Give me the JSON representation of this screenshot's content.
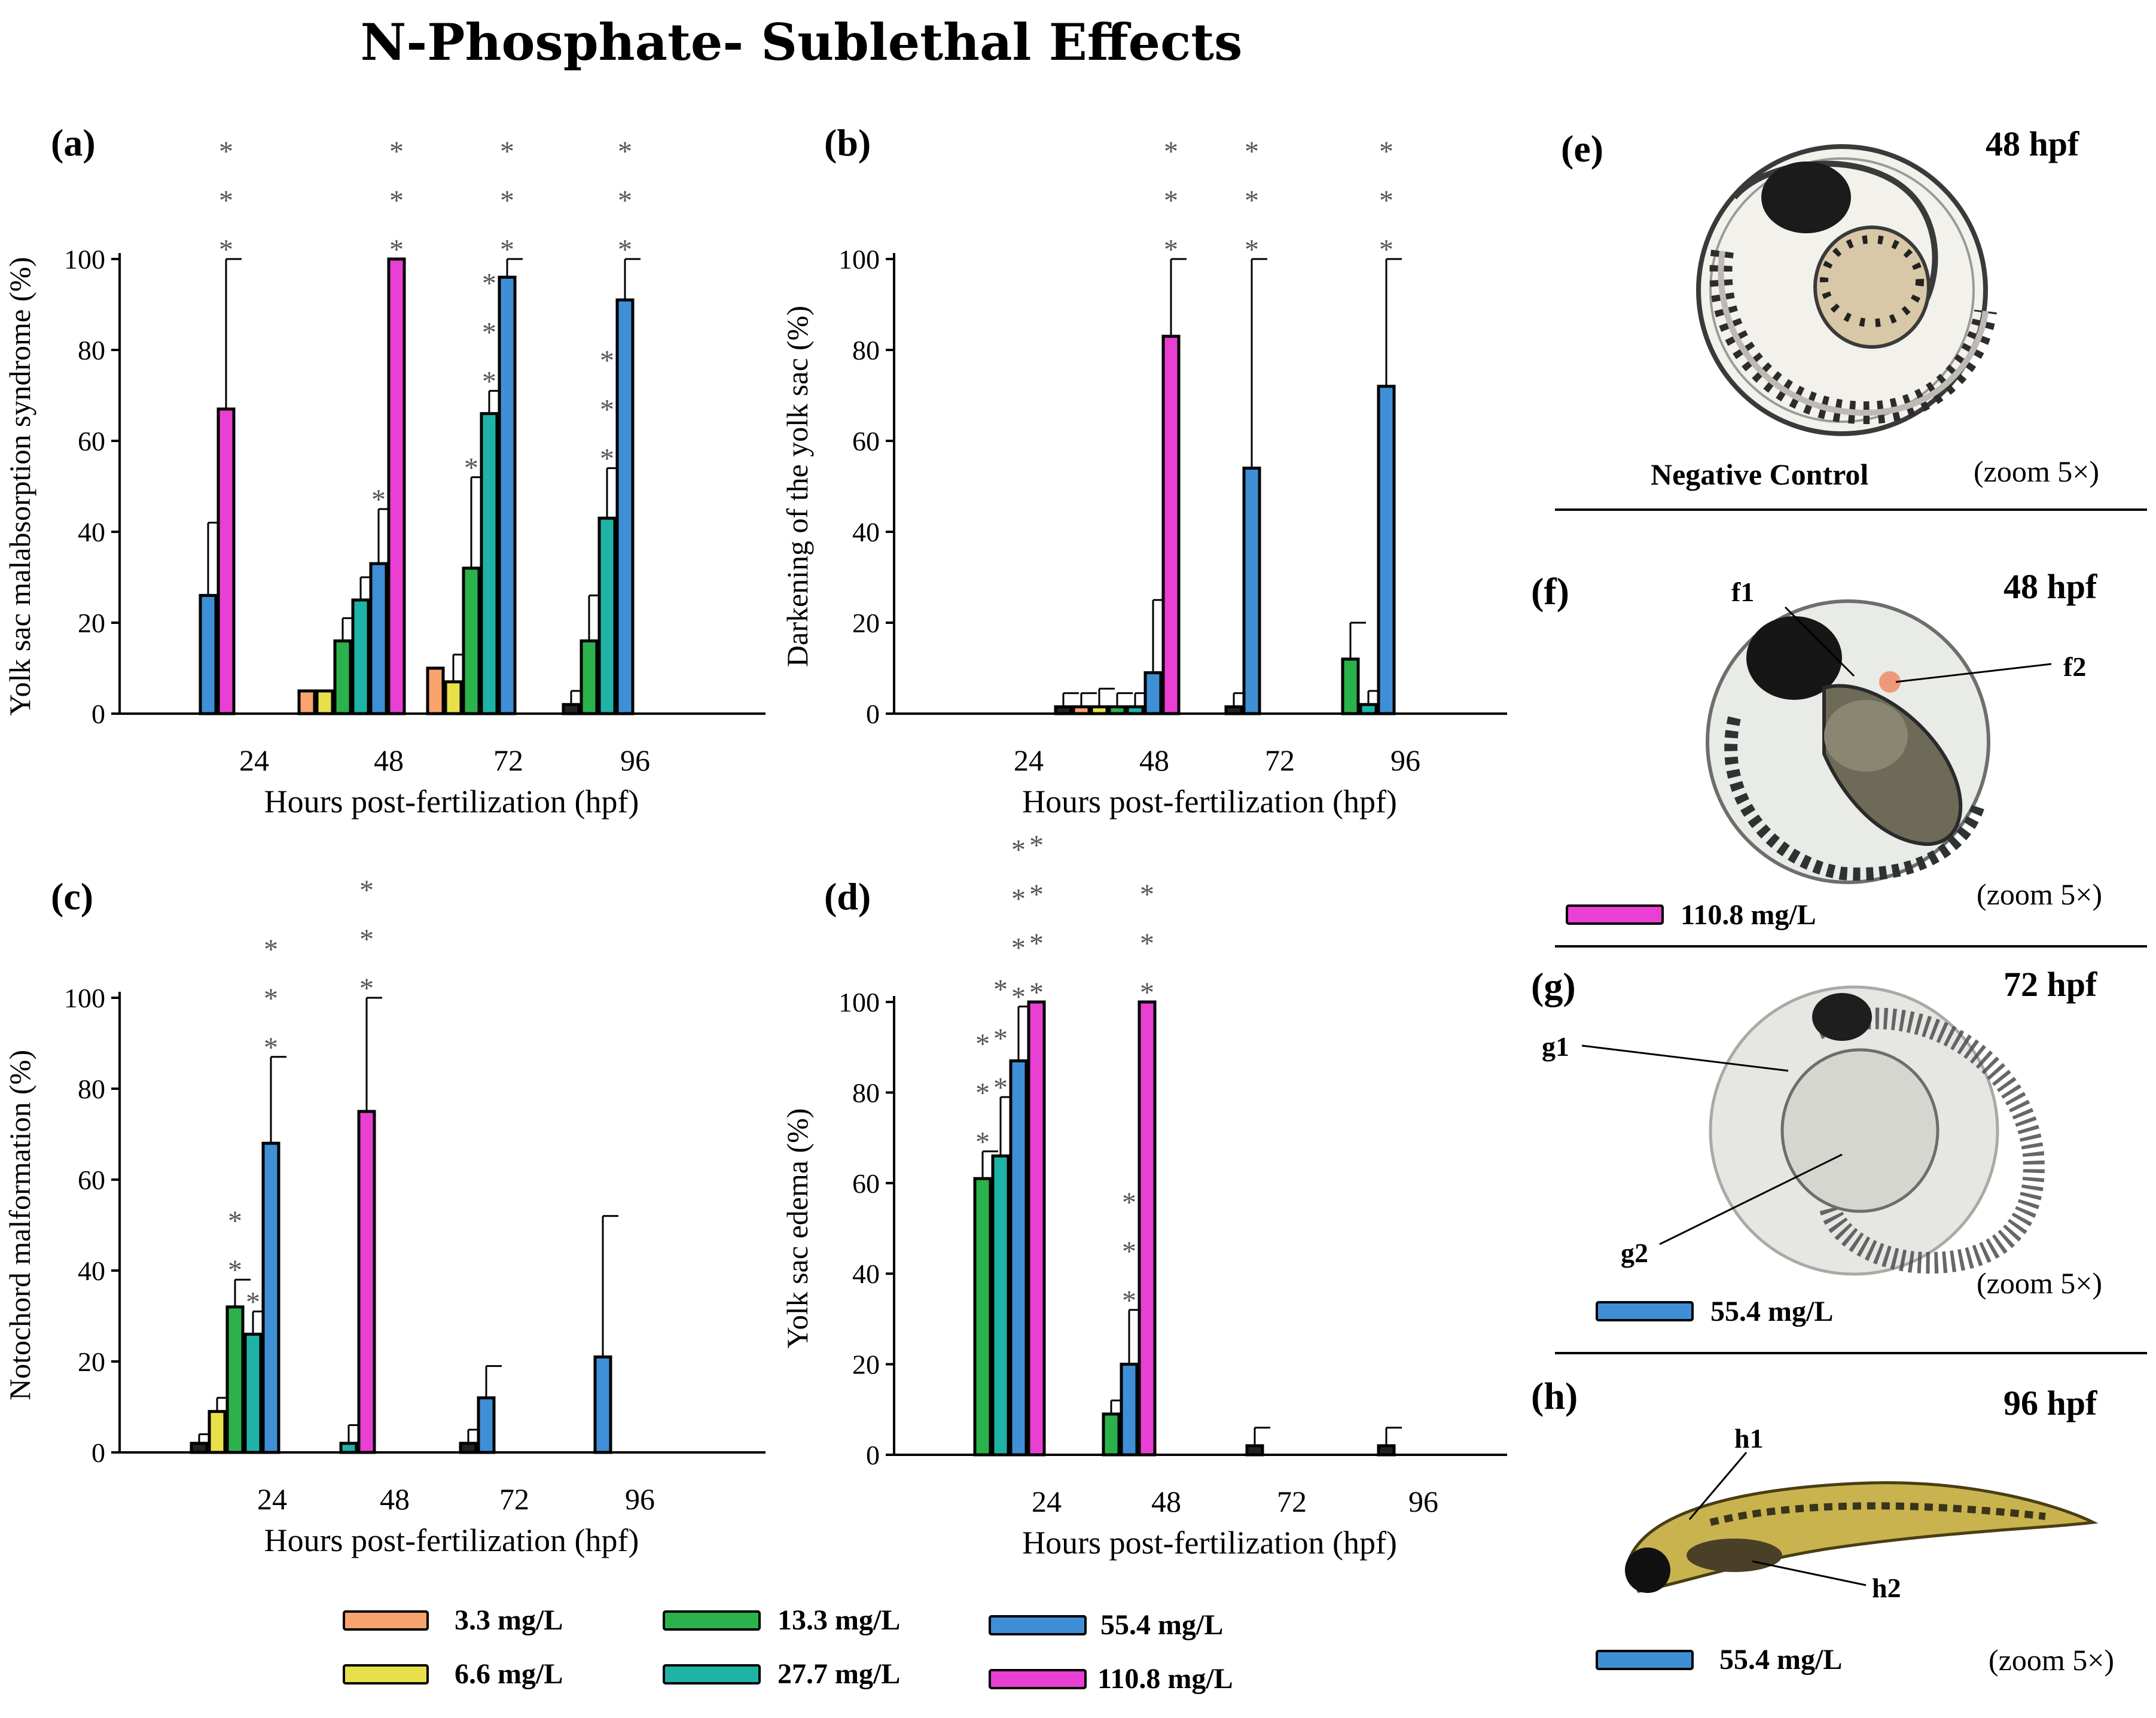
{
  "figure_title": "N-Phosphate- Sublethal Effects",
  "colors": {
    "3.3 mg/L": "#f9a36f",
    "6.6 mg/L": "#e8e04a",
    "13.3 mg/L": "#2bb24c",
    "27.7 mg/L": "#1fb3a6",
    "55.4 mg/L": "#3f8fd6",
    "110.8 mg/L": "#e93fd2",
    "negative control": "#222222"
  },
  "legend": {
    "entries": [
      "3.3 mg/L",
      "6.6 mg/L",
      "13.3 mg/L",
      "27.7 mg/L",
      "55.4 mg/L",
      "110.8 mg/L"
    ]
  },
  "chart_data": [
    {
      "panel": "(a)",
      "type": "bar",
      "ylabel": "Yolk sac malabsorption syndrome (%)",
      "xlabel": "Hours post-fertilization (hpf)",
      "categories": [
        "24",
        "48",
        "72",
        "96"
      ],
      "yticks": [
        "0",
        "20",
        "40",
        "60",
        "80",
        "100"
      ],
      "ylim": [
        0,
        100
      ],
      "series_order": [
        "negative control",
        "3.3 mg/L",
        "6.6 mg/L",
        "13.3 mg/L",
        "27.7 mg/L",
        "55.4 mg/L",
        "110.8 mg/L"
      ],
      "values": [
        [
          0,
          0,
          0,
          0,
          0,
          26,
          67
        ],
        [
          0,
          5,
          5,
          16,
          25,
          33,
          100
        ],
        [
          0,
          10,
          7,
          32,
          66,
          96,
          0
        ],
        [
          2,
          0,
          0,
          16,
          43,
          91,
          0
        ]
      ],
      "errors": [
        [
          0,
          0,
          0,
          0,
          0,
          16,
          33
        ],
        [
          0,
          0,
          0,
          5,
          5,
          12,
          0
        ],
        [
          0,
          0,
          6,
          20,
          5,
          4,
          0
        ],
        [
          3,
          0,
          0,
          10,
          11,
          9,
          0
        ]
      ],
      "stars": [
        [
          null,
          null,
          null,
          null,
          null,
          null,
          "*\n*\n*"
        ],
        [
          null,
          null,
          null,
          null,
          null,
          "*",
          "*\n*\n*"
        ],
        [
          null,
          null,
          null,
          "*",
          "*\n*\n*",
          "*\n*\n*",
          null
        ],
        [
          null,
          null,
          null,
          null,
          "*\n*\n*",
          "*\n*\n*",
          null
        ]
      ]
    },
    {
      "panel": "(b)",
      "type": "bar",
      "ylabel": "Darkening of the yolk sac (%)",
      "xlabel": "Hours post-fertilization (hpf)",
      "categories": [
        "24",
        "48",
        "72",
        "96"
      ],
      "yticks": [
        "0",
        "20",
        "40",
        "60",
        "80",
        "100"
      ],
      "ylim": [
        0,
        100
      ],
      "series_order": [
        "negative control",
        "3.3 mg/L",
        "6.6 mg/L",
        "13.3 mg/L",
        "27.7 mg/L",
        "55.4 mg/L",
        "110.8 mg/L"
      ],
      "values": [
        [
          0,
          0,
          0,
          0,
          0,
          0,
          0
        ],
        [
          1.5,
          1.5,
          1.5,
          1.5,
          1.5,
          9,
          83
        ],
        [
          1.5,
          0,
          0,
          0,
          0,
          54,
          0
        ],
        [
          0,
          0,
          0,
          12,
          2,
          72,
          0
        ]
      ],
      "errors": [
        [
          0,
          0,
          0,
          0,
          0,
          0,
          0
        ],
        [
          3,
          3,
          4,
          3,
          3,
          16,
          17
        ],
        [
          3,
          0,
          0,
          0,
          0,
          46,
          0
        ],
        [
          0,
          0,
          0,
          8,
          3,
          28,
          0
        ]
      ],
      "stars": [
        [
          null,
          null,
          null,
          null,
          null,
          null,
          null
        ],
        [
          null,
          null,
          null,
          null,
          null,
          null,
          "*\n*\n*"
        ],
        [
          null,
          null,
          null,
          null,
          null,
          "*\n*\n*",
          null
        ],
        [
          null,
          null,
          null,
          null,
          null,
          "*\n*\n*",
          null
        ]
      ]
    },
    {
      "panel": "(c)",
      "type": "bar",
      "ylabel": "Notochord malformation (%)",
      "xlabel": "Hours post-fertilization (hpf)",
      "categories": [
        "24",
        "48",
        "72",
        "96"
      ],
      "yticks": [
        "0",
        "20",
        "40",
        "60",
        "80",
        "100"
      ],
      "ylim": [
        0,
        100
      ],
      "series_order": [
        "negative control",
        "3.3 mg/L",
        "6.6 mg/L",
        "13.3 mg/L",
        "27.7 mg/L",
        "55.4 mg/L",
        "110.8 mg/L"
      ],
      "values": [
        [
          2,
          0,
          9,
          32,
          26,
          68,
          0
        ],
        [
          0,
          0,
          0,
          0,
          2,
          0,
          75
        ],
        [
          2,
          0,
          0,
          0,
          0,
          12,
          0
        ],
        [
          0,
          0,
          0,
          0,
          0,
          21,
          0
        ]
      ],
      "errors": [
        [
          2,
          0,
          3,
          6,
          5,
          19,
          0
        ],
        [
          0,
          0,
          0,
          0,
          4,
          0,
          25
        ],
        [
          3,
          0,
          0,
          0,
          0,
          7,
          0
        ],
        [
          0,
          0,
          0,
          0,
          0,
          31,
          0
        ]
      ],
      "stars": [
        [
          null,
          null,
          null,
          "*\n*",
          "*",
          "*\n*\n*",
          null
        ],
        [
          null,
          null,
          null,
          null,
          null,
          null,
          "*\n*\n*"
        ],
        [
          null,
          null,
          null,
          null,
          null,
          null,
          null
        ],
        [
          null,
          null,
          null,
          null,
          null,
          null,
          null
        ]
      ]
    },
    {
      "panel": "(d)",
      "type": "bar",
      "ylabel": "Yolk sac edema (%)",
      "xlabel": "Hours post-fertilization (hpf)",
      "categories": [
        "24",
        "48",
        "72",
        "96"
      ],
      "yticks": [
        "0",
        "20",
        "40",
        "60",
        "80",
        "100"
      ],
      "ylim": [
        0,
        100
      ],
      "series_order": [
        "negative control",
        "3.3 mg/L",
        "6.6 mg/L",
        "13.3 mg/L",
        "27.7 mg/L",
        "55.4 mg/L",
        "110.8 mg/L"
      ],
      "values": [
        [
          0,
          0,
          0,
          61,
          66,
          87,
          100
        ],
        [
          0,
          0,
          0,
          9,
          0,
          20,
          100
        ],
        [
          2,
          0,
          0,
          0,
          0,
          0,
          0
        ],
        [
          2,
          0,
          0,
          0,
          0,
          0,
          0
        ]
      ],
      "errors": [
        [
          0,
          0,
          0,
          6,
          13,
          12,
          0
        ],
        [
          0,
          0,
          0,
          3,
          0,
          12,
          0
        ],
        [
          4,
          0,
          0,
          0,
          0,
          0,
          0
        ],
        [
          4,
          0,
          0,
          0,
          0,
          0,
          0
        ]
      ],
      "stars": [
        [
          null,
          null,
          null,
          "*\n*\n*",
          "*\n*\n*",
          "*\n*\n*\n*",
          "*\n*\n*\n*"
        ],
        [
          null,
          null,
          null,
          null,
          null,
          "*\n*\n*",
          "*\n*\n*"
        ],
        [
          null,
          null,
          null,
          null,
          null,
          null,
          null
        ],
        [
          null,
          null,
          null,
          null,
          null,
          null,
          null
        ]
      ]
    }
  ],
  "images": [
    {
      "panel": "(e)",
      "time": "48 hpf",
      "caption": "Negative Control",
      "zoom": "(zoom 5×)"
    },
    {
      "panel": "(f)",
      "time": "48 hpf",
      "legend": "110.8 mg/L",
      "zoom": "(zoom 5×)",
      "callouts": [
        "f1",
        "f2"
      ]
    },
    {
      "panel": "(g)",
      "time": "72 hpf",
      "legend": "55.4 mg/L",
      "zoom": "(zoom 5×)",
      "callouts": [
        "g1",
        "g2"
      ]
    },
    {
      "panel": "(h)",
      "time": "96 hpf",
      "legend": "55.4 mg/L",
      "zoom": "(zoom 5×)",
      "callouts": [
        "h1",
        "h2"
      ]
    }
  ]
}
